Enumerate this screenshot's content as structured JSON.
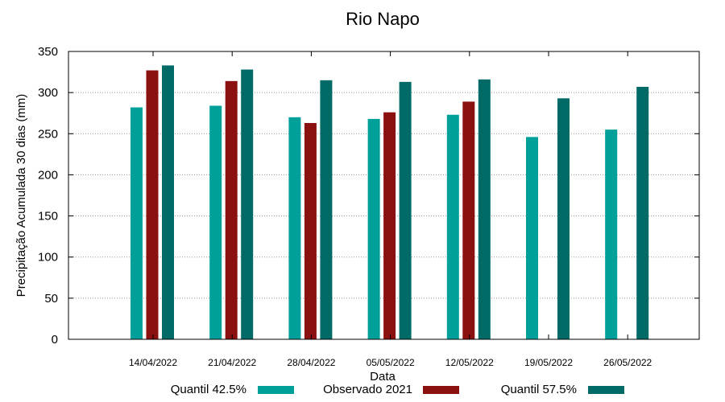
{
  "chart_data": {
    "type": "bar",
    "title": "Rio Napo",
    "xlabel": "Data",
    "ylabel": "Precipitação Acumulada 30 dias (mm)",
    "ylim": [
      0,
      350
    ],
    "yticks": [
      0,
      50,
      100,
      150,
      200,
      250,
      300,
      350
    ],
    "grid": true,
    "legend_placement": "bottom",
    "categories": [
      "14/04/2022",
      "21/04/2022",
      "28/04/2022",
      "05/05/2022",
      "12/05/2022",
      "19/05/2022",
      "26/05/2022"
    ],
    "series": [
      {
        "name": "Quantil 42.5%",
        "color": "#00A09A",
        "values": [
          282,
          284,
          270,
          268,
          273,
          246,
          255
        ]
      },
      {
        "name": "Observado 2021",
        "color": "#8B1010",
        "values": [
          327,
          314,
          263,
          276,
          289,
          null,
          null
        ]
      },
      {
        "name": "Quantil 57.5%",
        "color": "#006A66",
        "values": [
          333,
          328,
          315,
          313,
          316,
          293,
          307
        ]
      }
    ]
  }
}
